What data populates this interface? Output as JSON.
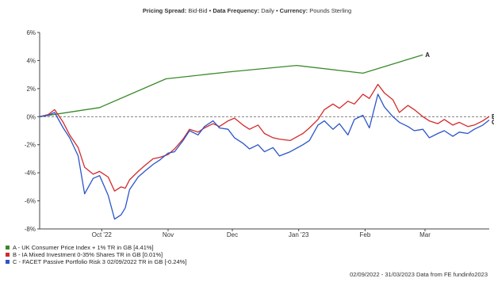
{
  "header": {
    "spread_label": "Pricing Spread:",
    "spread_value": " Bid-Bid",
    "sep1": " • ",
    "freq_label": "Data Frequency:",
    "freq_value": " Daily",
    "sep2": " • ",
    "curr_label": "Currency:",
    "curr_value": " Pounds Sterling"
  },
  "footer": {
    "text": "02/09/2022 - 31/03/2023 Data from FE fundinfo2023"
  },
  "chart_data": {
    "type": "line",
    "x_domain": [
      "2022-09-02",
      "2023-03-31"
    ],
    "ylim": [
      -8,
      6
    ],
    "y_ticks": [
      -8,
      -6,
      -4,
      -2,
      0,
      2,
      4,
      6
    ],
    "y_tick_format": "%",
    "x_ticks": [
      {
        "label": "Oct '22",
        "date": "2022-10-01"
      },
      {
        "label": "Nov",
        "date": "2022-11-01"
      },
      {
        "label": "Dec",
        "date": "2022-12-01"
      },
      {
        "label": "Jan '23",
        "date": "2023-01-01"
      },
      {
        "label": "Feb",
        "date": "2023-02-01"
      },
      {
        "label": "Mar",
        "date": "2023-03-01"
      }
    ],
    "grid": false,
    "zero_line": "dashed",
    "series": [
      {
        "name": "A - UK Consumer Price Index + 1% TR in GB [4.41%]",
        "end_label": "A",
        "color": "#3a8a2a",
        "x": [
          "2022-09-02",
          "2022-09-30",
          "2022-10-31",
          "2022-11-30",
          "2022-12-31",
          "2023-01-31",
          "2023-02-28"
        ],
        "y": [
          0.0,
          0.65,
          2.7,
          3.2,
          3.65,
          3.1,
          4.41
        ]
      },
      {
        "name": "B - IA Mixed Investment 0-35% Shares TR in GB [0.01%]",
        "end_label": "B",
        "color": "#d42a2a",
        "x": [
          "2022-09-02",
          "2022-09-06",
          "2022-09-09",
          "2022-09-13",
          "2022-09-16",
          "2022-09-20",
          "2022-09-23",
          "2022-09-27",
          "2022-09-30",
          "2022-10-04",
          "2022-10-07",
          "2022-10-10",
          "2022-10-12",
          "2022-10-14",
          "2022-10-18",
          "2022-10-21",
          "2022-10-25",
          "2022-10-28",
          "2022-11-01",
          "2022-11-04",
          "2022-11-08",
          "2022-11-11",
          "2022-11-15",
          "2022-11-18",
          "2022-11-22",
          "2022-11-25",
          "2022-11-29",
          "2022-12-02",
          "2022-12-06",
          "2022-12-09",
          "2022-12-13",
          "2022-12-16",
          "2022-12-20",
          "2022-12-23",
          "2022-12-28",
          "2023-01-03",
          "2023-01-06",
          "2023-01-10",
          "2023-01-13",
          "2023-01-17",
          "2023-01-20",
          "2023-01-24",
          "2023-01-27",
          "2023-01-31",
          "2023-02-03",
          "2023-02-07",
          "2023-02-10",
          "2023-02-14",
          "2023-02-17",
          "2023-02-21",
          "2023-02-24",
          "2023-02-28",
          "2023-03-03",
          "2023-03-07",
          "2023-03-10",
          "2023-03-14",
          "2023-03-17",
          "2023-03-21",
          "2023-03-24",
          "2023-03-28",
          "2023-03-31"
        ],
        "y": [
          0.0,
          0.15,
          0.5,
          -0.4,
          -1.3,
          -2.2,
          -3.6,
          -4.1,
          -3.9,
          -4.3,
          -5.3,
          -5.0,
          -5.1,
          -4.5,
          -3.9,
          -3.5,
          -3.0,
          -2.9,
          -2.7,
          -2.3,
          -1.6,
          -0.9,
          -1.1,
          -0.8,
          -0.5,
          -0.7,
          -0.3,
          -0.1,
          -0.6,
          -0.9,
          -0.6,
          -1.2,
          -1.5,
          -1.6,
          -1.7,
          -1.2,
          -0.8,
          -0.2,
          0.5,
          0.9,
          0.6,
          1.1,
          0.9,
          1.6,
          1.3,
          2.3,
          1.7,
          1.2,
          0.3,
          0.8,
          0.5,
          0.0,
          -0.3,
          -0.5,
          -0.2,
          -0.6,
          -0.4,
          -0.7,
          -0.6,
          -0.3,
          0.01
        ]
      },
      {
        "name": "C - FACET Passive Portfolio Risk 3 02/09/2022 TR in GB [-0.24%]",
        "end_label": "C",
        "color": "#2b55c9",
        "x": [
          "2022-09-02",
          "2022-09-06",
          "2022-09-09",
          "2022-09-13",
          "2022-09-16",
          "2022-09-20",
          "2022-09-23",
          "2022-09-27",
          "2022-09-30",
          "2022-10-04",
          "2022-10-07",
          "2022-10-10",
          "2022-10-12",
          "2022-10-14",
          "2022-10-18",
          "2022-10-21",
          "2022-10-25",
          "2022-10-28",
          "2022-11-01",
          "2022-11-04",
          "2022-11-08",
          "2022-11-11",
          "2022-11-15",
          "2022-11-18",
          "2022-11-22",
          "2022-11-25",
          "2022-11-29",
          "2022-12-02",
          "2022-12-06",
          "2022-12-09",
          "2022-12-13",
          "2022-12-16",
          "2022-12-20",
          "2022-12-23",
          "2022-12-28",
          "2023-01-03",
          "2023-01-06",
          "2023-01-10",
          "2023-01-13",
          "2023-01-17",
          "2023-01-20",
          "2023-01-24",
          "2023-01-27",
          "2023-01-31",
          "2023-02-03",
          "2023-02-07",
          "2023-02-10",
          "2023-02-14",
          "2023-02-17",
          "2023-02-21",
          "2023-02-24",
          "2023-02-28",
          "2023-03-03",
          "2023-03-07",
          "2023-03-10",
          "2023-03-14",
          "2023-03-17",
          "2023-03-21",
          "2023-03-24",
          "2023-03-28",
          "2023-03-31"
        ],
        "y": [
          0.0,
          0.1,
          0.3,
          -0.8,
          -1.5,
          -2.8,
          -5.5,
          -4.4,
          -4.2,
          -5.6,
          -7.3,
          -7.0,
          -6.5,
          -5.2,
          -4.3,
          -3.9,
          -3.4,
          -3.1,
          -2.6,
          -2.5,
          -1.7,
          -1.0,
          -1.3,
          -0.7,
          -0.3,
          -0.8,
          -0.9,
          -1.5,
          -1.9,
          -2.3,
          -2.0,
          -2.5,
          -2.2,
          -2.8,
          -2.5,
          -2.0,
          -1.7,
          -0.6,
          -0.3,
          -0.9,
          -0.5,
          -1.3,
          -0.2,
          0.1,
          -0.8,
          1.6,
          0.7,
          0.0,
          -0.4,
          -0.7,
          -1.0,
          -0.9,
          -1.5,
          -1.2,
          -1.0,
          -1.4,
          -1.1,
          -1.2,
          -0.9,
          -0.6,
          -0.24
        ]
      }
    ]
  }
}
